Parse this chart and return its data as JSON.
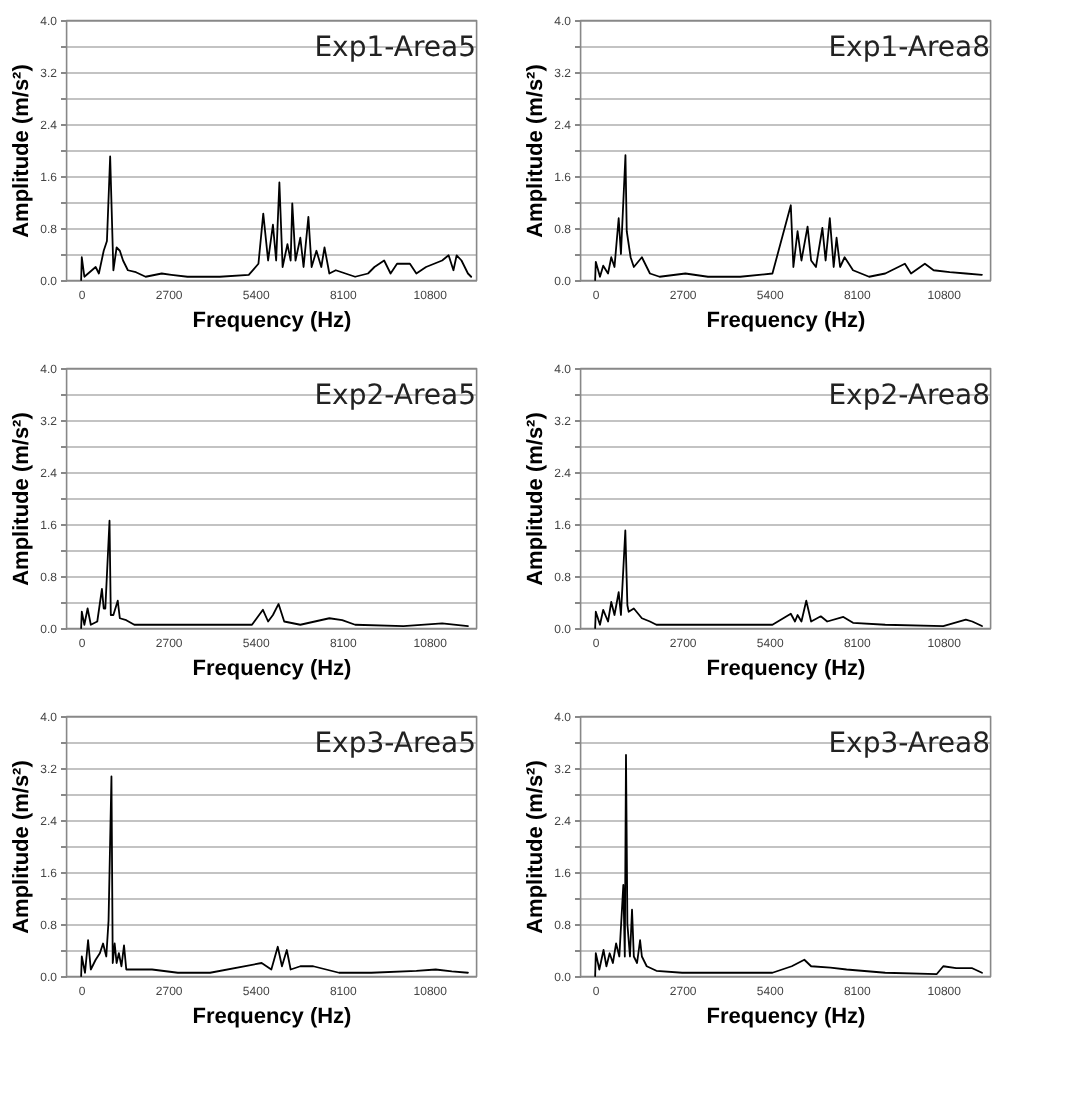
{
  "chart_data": [
    {
      "type": "line",
      "title": "Exp1-Area5",
      "xlabel": "Frequency (Hz)",
      "ylabel": "Amplitude (m/s²)",
      "color": "#000000",
      "grid": "y",
      "xlim": [
        -470,
        12250
      ],
      "xticks": [
        0,
        2700,
        5400,
        8100,
        10800
      ],
      "ylim": [
        0,
        4
      ],
      "yticks": [
        {
          "value": 0,
          "label": "0.0"
        },
        {
          "value": 0.4,
          "label": null
        },
        {
          "value": 0.8,
          "label": "0.8"
        },
        {
          "value": 1.2,
          "label": null
        },
        {
          "value": 1.6,
          "label": "1.6"
        },
        {
          "value": 2,
          "label": null
        },
        {
          "value": 2.4,
          "label": "2.4"
        },
        {
          "value": 2.8,
          "label": null
        },
        {
          "value": 3.2,
          "label": "3.2"
        },
        {
          "value": 3.6,
          "label": null
        },
        {
          "value": 4,
          "label": "4.0"
        }
      ],
      "x": [
        0,
        20,
        100,
        450,
        550,
        700,
        800,
        900,
        1000,
        1100,
        1200,
        1300,
        1450,
        1700,
        2000,
        2500,
        2800,
        3300,
        4300,
        5200,
        5500,
        5650,
        5800,
        5950,
        6050,
        6150,
        6250,
        6400,
        6500,
        6550,
        6650,
        6800,
        6900,
        7050,
        7150,
        7300,
        7450,
        7550,
        7700,
        7900,
        8500,
        8900,
        9100,
        9400,
        9600,
        9800,
        10200,
        10400,
        10700,
        11200,
        11400,
        11550,
        11650,
        11800,
        12000,
        12100
      ],
      "values": [
        0,
        0.35,
        0.05,
        0.2,
        0.1,
        0.45,
        0.6,
        1.9,
        0.15,
        0.5,
        0.45,
        0.3,
        0.15,
        0.12,
        0.05,
        0.1,
        0.08,
        0.05,
        0.05,
        0.08,
        0.25,
        1.02,
        0.3,
        0.85,
        0.3,
        1.5,
        0.2,
        0.55,
        0.3,
        1.18,
        0.3,
        0.65,
        0.2,
        0.97,
        0.2,
        0.45,
        0.2,
        0.5,
        0.1,
        0.15,
        0.05,
        0.1,
        0.2,
        0.3,
        0.1,
        0.25,
        0.25,
        0.1,
        0.2,
        0.3,
        0.38,
        0.15,
        0.38,
        0.3,
        0.1,
        0.05
      ]
    },
    {
      "type": "line",
      "title": "Exp1-Area8",
      "xlabel": "Frequency (Hz)",
      "ylabel": "Amplitude (m/s²)",
      "color": "#000000",
      "grid": "y",
      "xlim": [
        -470,
        12250
      ],
      "xticks": [
        0,
        2700,
        5400,
        8100,
        10800
      ],
      "ylim": [
        0,
        4
      ],
      "yticks": [
        {
          "value": 0,
          "label": "0.0"
        },
        {
          "value": 0.4,
          "label": null
        },
        {
          "value": 0.8,
          "label": "0.8"
        },
        {
          "value": 1.2,
          "label": null
        },
        {
          "value": 1.6,
          "label": "1.6"
        },
        {
          "value": 2,
          "label": null
        },
        {
          "value": 2.4,
          "label": "2.4"
        },
        {
          "value": 2.8,
          "label": null
        },
        {
          "value": 3.2,
          "label": "3.2"
        },
        {
          "value": 3.6,
          "label": null
        },
        {
          "value": 4,
          "label": "4.0"
        }
      ],
      "x": [
        0,
        20,
        150,
        250,
        400,
        500,
        600,
        730,
        800,
        940,
        980,
        1100,
        1200,
        1450,
        1700,
        2000,
        2800,
        3500,
        4500,
        5500,
        6070,
        6150,
        6280,
        6400,
        6590,
        6700,
        6850,
        7050,
        7150,
        7280,
        7400,
        7490,
        7600,
        7740,
        8000,
        8500,
        9000,
        9610,
        9800,
        10230,
        10500,
        11000,
        11500,
        12000
      ],
      "values": [
        0,
        0.28,
        0.05,
        0.22,
        0.1,
        0.35,
        0.2,
        0.95,
        0.4,
        1.92,
        0.75,
        0.35,
        0.2,
        0.35,
        0.1,
        0.05,
        0.1,
        0.05,
        0.05,
        0.1,
        1.15,
        0.2,
        0.75,
        0.3,
        0.82,
        0.3,
        0.2,
        0.8,
        0.3,
        0.95,
        0.2,
        0.65,
        0.2,
        0.35,
        0.15,
        0.05,
        0.1,
        0.25,
        0.1,
        0.25,
        0.15,
        0.12,
        0.1,
        0.08
      ]
    },
    {
      "type": "line",
      "title": "Exp2-Area5",
      "xlabel": "Frequency (Hz)",
      "ylabel": "Amplitude (m/s²)",
      "color": "#000000",
      "grid": "y",
      "xlim": [
        -470,
        12250
      ],
      "xticks": [
        0,
        2700,
        5400,
        8100,
        10800
      ],
      "ylim": [
        0,
        4
      ],
      "yticks": [
        {
          "value": 0,
          "label": "0.0"
        },
        {
          "value": 0.4,
          "label": null
        },
        {
          "value": 0.8,
          "label": "0.8"
        },
        {
          "value": 1.2,
          "label": null
        },
        {
          "value": 1.6,
          "label": "1.6"
        },
        {
          "value": 2,
          "label": null
        },
        {
          "value": 2.4,
          "label": "2.4"
        },
        {
          "value": 2.8,
          "label": null
        },
        {
          "value": 3.2,
          "label": "3.2"
        },
        {
          "value": 3.6,
          "label": null
        },
        {
          "value": 4,
          "label": "4.0"
        }
      ],
      "x": [
        0,
        20,
        100,
        200,
        300,
        500,
        645,
        700,
        750,
        880,
        920,
        1000,
        1135,
        1200,
        1400,
        1650,
        2000,
        3000,
        4000,
        5300,
        5640,
        5800,
        5950,
        6125,
        6300,
        6800,
        7700,
        8100,
        8500,
        10000,
        11200,
        12000
      ],
      "values": [
        0,
        0.25,
        0.05,
        0.3,
        0.05,
        0.1,
        0.6,
        0.3,
        0.3,
        1.65,
        0.2,
        0.2,
        0.42,
        0.15,
        0.12,
        0.05,
        0.05,
        0.05,
        0.05,
        0.05,
        0.28,
        0.1,
        0.2,
        0.37,
        0.1,
        0.05,
        0.15,
        0.12,
        0.05,
        0.03,
        0.07,
        0.03
      ]
    },
    {
      "type": "line",
      "title": "Exp2-Area8",
      "xlabel": "Frequency (Hz)",
      "ylabel": "Amplitude (m/s²)",
      "color": "#000000",
      "grid": "y",
      "xlim": [
        -470,
        12250
      ],
      "xticks": [
        0,
        2700,
        5400,
        8100,
        10800
      ],
      "ylim": [
        0,
        4
      ],
      "yticks": [
        {
          "value": 0,
          "label": "0.0"
        },
        {
          "value": 0.4,
          "label": null
        },
        {
          "value": 0.8,
          "label": "0.8"
        },
        {
          "value": 1.2,
          "label": null
        },
        {
          "value": 1.6,
          "label": "1.6"
        },
        {
          "value": 2,
          "label": null
        },
        {
          "value": 2.4,
          "label": "2.4"
        },
        {
          "value": 2.8,
          "label": null
        },
        {
          "value": 3.2,
          "label": "3.2"
        },
        {
          "value": 3.6,
          "label": null
        },
        {
          "value": 4,
          "label": "4.0"
        }
      ],
      "x": [
        0,
        20,
        150,
        250,
        400,
        500,
        600,
        730,
        800,
        936,
        1000,
        1040,
        1200,
        1450,
        1700,
        1900,
        2500,
        3500,
        4500,
        5500,
        6070,
        6200,
        6280,
        6400,
        6550,
        6700,
        7000,
        7200,
        7700,
        8000,
        9000,
        10800,
        11500,
        11700,
        12000
      ],
      "values": [
        0,
        0.25,
        0.05,
        0.28,
        0.1,
        0.4,
        0.2,
        0.55,
        0.2,
        1.5,
        0.35,
        0.25,
        0.3,
        0.15,
        0.1,
        0.05,
        0.05,
        0.05,
        0.05,
        0.05,
        0.22,
        0.1,
        0.2,
        0.1,
        0.42,
        0.1,
        0.18,
        0.1,
        0.17,
        0.08,
        0.05,
        0.03,
        0.13,
        0.1,
        0.03
      ]
    },
    {
      "type": "line",
      "title": "Exp3-Area5",
      "xlabel": "Frequency (Hz)",
      "ylabel": "Amplitude (m/s²)",
      "color": "#000000",
      "grid": "y",
      "xlim": [
        -470,
        12250
      ],
      "xticks": [
        0,
        2700,
        5400,
        8100,
        10800
      ],
      "ylim": [
        0,
        4
      ],
      "yticks": [
        {
          "value": 0,
          "label": "0.0"
        },
        {
          "value": 0.4,
          "label": null
        },
        {
          "value": 0.8,
          "label": "0.8"
        },
        {
          "value": 1.2,
          "label": null
        },
        {
          "value": 1.6,
          "label": "1.6"
        },
        {
          "value": 2,
          "label": null
        },
        {
          "value": 2.4,
          "label": "2.4"
        },
        {
          "value": 2.8,
          "label": null
        },
        {
          "value": 3.2,
          "label": "3.2"
        },
        {
          "value": 3.6,
          "label": null
        },
        {
          "value": 4,
          "label": "4.0"
        }
      ],
      "x": [
        0,
        20,
        120,
        215,
        300,
        450,
        580,
        680,
        780,
        850,
        940,
        980,
        1040,
        1100,
        1170,
        1250,
        1330,
        1400,
        1750,
        2200,
        3000,
        4000,
        5600,
        5900,
        6100,
        6230,
        6380,
        6500,
        6800,
        7200,
        7600,
        8000,
        9000,
        10400,
        11000,
        11500,
        12000
      ],
      "values": [
        0,
        0.3,
        0.05,
        0.55,
        0.1,
        0.25,
        0.35,
        0.5,
        0.3,
        0.85,
        3.07,
        0.2,
        0.5,
        0.2,
        0.35,
        0.15,
        0.47,
        0.1,
        0.1,
        0.1,
        0.05,
        0.05,
        0.2,
        0.1,
        0.45,
        0.15,
        0.4,
        0.1,
        0.15,
        0.15,
        0.1,
        0.05,
        0.05,
        0.08,
        0.1,
        0.07,
        0.05
      ]
    },
    {
      "type": "line",
      "title": "Exp3-Area8",
      "xlabel": "Frequency (Hz)",
      "ylabel": "Amplitude (m/s²)",
      "color": "#000000",
      "grid": "y",
      "xlim": [
        -470,
        12250
      ],
      "xticks": [
        0,
        2700,
        5400,
        8100,
        10800
      ],
      "ylim": [
        0,
        4
      ],
      "yticks": [
        {
          "value": 0,
          "label": "0.0"
        },
        {
          "value": 0.4,
          "label": null
        },
        {
          "value": 0.8,
          "label": "0.8"
        },
        {
          "value": 1.2,
          "label": null
        },
        {
          "value": 1.6,
          "label": "1.6"
        },
        {
          "value": 2,
          "label": null
        },
        {
          "value": 2.4,
          "label": "2.4"
        },
        {
          "value": 2.8,
          "label": null
        },
        {
          "value": 3.2,
          "label": "3.2"
        },
        {
          "value": 3.6,
          "label": null
        },
        {
          "value": 4,
          "label": "4.0"
        }
      ],
      "x": [
        0,
        20,
        130,
        260,
        350,
        450,
        550,
        650,
        750,
        874,
        920,
        957,
        1000,
        1080,
        1144,
        1200,
        1300,
        1394,
        1450,
        1600,
        1900,
        2700,
        4000,
        5500,
        6100,
        6490,
        6700,
        7300,
        7800,
        9000,
        10600,
        10800,
        11200,
        11700,
        12000
      ],
      "values": [
        0,
        0.35,
        0.1,
        0.4,
        0.15,
        0.35,
        0.2,
        0.5,
        0.3,
        1.4,
        0.3,
        3.4,
        0.8,
        0.3,
        1.02,
        0.3,
        0.2,
        0.55,
        0.3,
        0.15,
        0.08,
        0.05,
        0.05,
        0.05,
        0.15,
        0.25,
        0.15,
        0.13,
        0.1,
        0.05,
        0.03,
        0.15,
        0.12,
        0.12,
        0.05
      ]
    }
  ]
}
